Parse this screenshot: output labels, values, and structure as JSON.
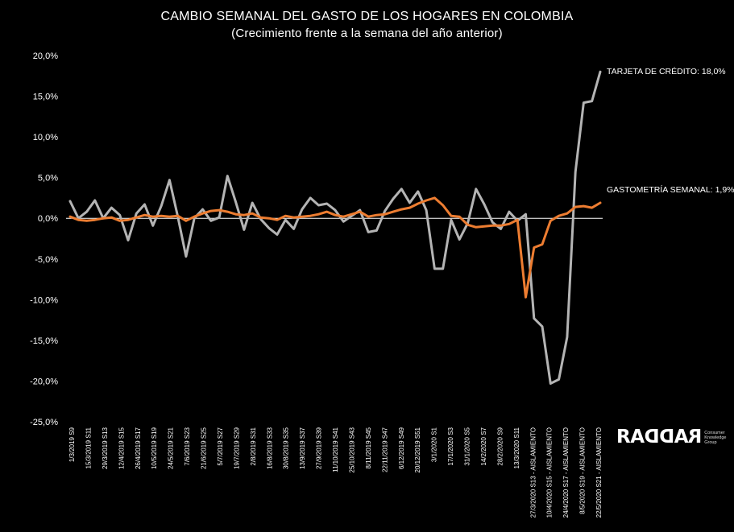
{
  "chart_data": {
    "type": "line",
    "title": "CAMBIO SEMANAL DEL GASTO DE LOS HOGARES EN COLOMBIA",
    "subtitle": "(Crecimiento frente a la semana del año anterior)",
    "ylim": [
      -25,
      20
    ],
    "yticks": [
      "20,0%",
      "15,0%",
      "10,0%",
      "5,0%",
      "0,0%",
      "-5,0%",
      "-10,0%",
      "-15,0%",
      "-20,0%",
      "-25,0%"
    ],
    "ytick_values": [
      20,
      15,
      10,
      5,
      0,
      -5,
      -10,
      -15,
      -20,
      -25
    ],
    "xtick_labels": [
      "1/3/2019 S9",
      "15/3/2019 S11",
      "29/3/2019 S13",
      "12/4/2019 S15",
      "26/4/2019 S17",
      "10/5/2019 S19",
      "24/5/2019 S21",
      "7/6/2019 S23",
      "21/6/2019 S25",
      "5/7/2019 S27",
      "19/7/2019 S29",
      "2/8/2019 S31",
      "16/8/2019 S33",
      "30/8/2019 S35",
      "13/9/2019 S37",
      "27/9/2019 S39",
      "11/10/2019 S41",
      "25/10/2019 S43",
      "8/11/2019 S45",
      "22/11/2019 S47",
      "6/12/2019 S49",
      "20/12/2019 S51",
      "3/1/2020 S1",
      "17/1/2020 S3",
      "31/1/2020 S5",
      "14/2/2020 S7",
      "28/2/2020 S9",
      "13/3/2020 S11",
      "27/3/2020 S13 - AISLAMIENTO",
      "10/4/2020 S15 - AISLAMIENTO",
      "24/4/2020 S17 - AISLAMIENTO",
      "8/5/2020 S19 - AISLAMIENTO",
      "22/5/2020 S21 - AISLAMIENTO"
    ],
    "series": [
      {
        "name": "TARJETA DE CRÉDITO",
        "label": "TARJETA DE CRÉDITO: 18,0%",
        "color": "#b4b4b4",
        "values": [
          2.1,
          0.0,
          0.8,
          2.2,
          0.0,
          1.3,
          0.4,
          -2.7,
          0.6,
          1.7,
          -0.9,
          1.5,
          4.7,
          0.2,
          -4.7,
          0.0,
          1.1,
          -0.3,
          0.1,
          5.2,
          2.0,
          -1.4,
          1.9,
          -0.1,
          -1.2,
          -2.0,
          -0.2,
          -1.3,
          1.1,
          2.5,
          1.6,
          1.8,
          1.0,
          -0.4,
          0.3,
          1.0,
          -1.7,
          -1.5,
          0.9,
          2.4,
          3.6,
          1.9,
          3.3,
          1.0,
          -6.2,
          -6.2,
          -0.2,
          -2.6,
          -0.6,
          3.6,
          1.7,
          -0.5,
          -1.3,
          0.8,
          -0.3,
          0.5,
          -12.3,
          -13.3,
          -20.3,
          -19.8,
          -14.6,
          5.7,
          14.2,
          14.4,
          18.0
        ]
      },
      {
        "name": "GASTOMETRÍA SEMANAL",
        "label": "GASTOMETRÍA SEMANAL: 1,9%",
        "color": "#ed7d31",
        "values": [
          0.2,
          -0.2,
          -0.3,
          -0.2,
          0.0,
          0.1,
          -0.3,
          -0.2,
          0.1,
          0.4,
          0.2,
          0.3,
          0.2,
          0.3,
          -0.3,
          0.2,
          0.6,
          0.9,
          1.0,
          0.8,
          0.5,
          0.4,
          0.6,
          0.1,
          0.0,
          -0.2,
          0.3,
          0.1,
          0.2,
          0.3,
          0.5,
          0.8,
          0.4,
          0.2,
          0.5,
          0.8,
          0.2,
          0.4,
          0.5,
          0.8,
          1.1,
          1.3,
          1.8,
          2.2,
          2.5,
          1.6,
          0.3,
          0.2,
          -0.8,
          -1.1,
          -1.0,
          -0.9,
          -0.9,
          -0.7,
          -0.2,
          -9.7,
          -3.6,
          -3.2,
          -0.3,
          0.3,
          0.6,
          1.4,
          1.5,
          1.3,
          1.9
        ]
      }
    ],
    "grid": false,
    "legend": "inline labels at series ends",
    "zero_line": true
  },
  "branding": {
    "logo_text": "RADDAR",
    "logo_tagline": "Consumer Knowledge Group"
  }
}
